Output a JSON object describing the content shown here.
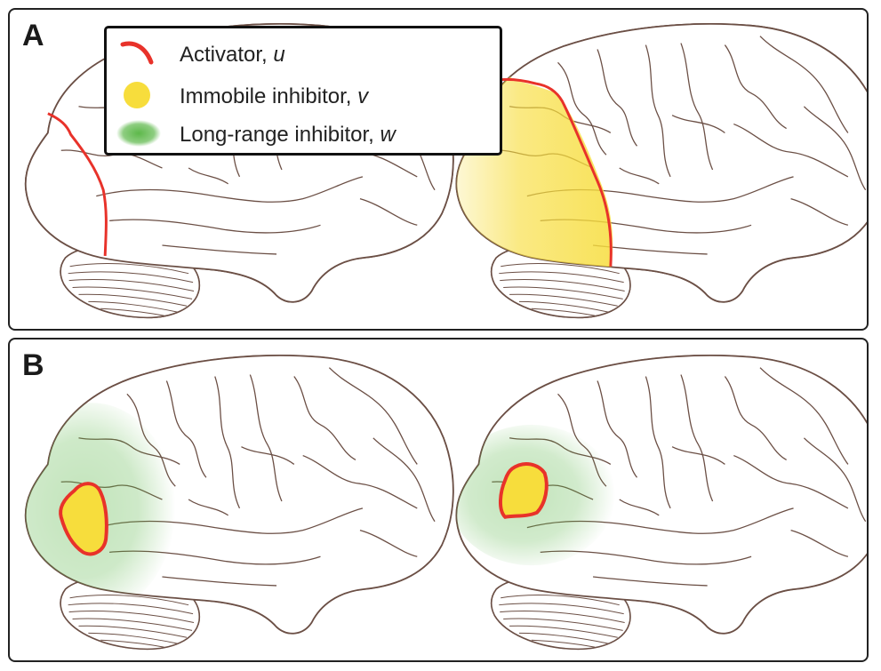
{
  "panels": [
    {
      "label": "A"
    },
    {
      "label": "B"
    }
  ],
  "legend": {
    "items": [
      {
        "text": "Activator, ",
        "symbol": "u",
        "swatch": "red-arc",
        "color": "#e8322a"
      },
      {
        "text": "Immobile inhibitor, ",
        "symbol": "v",
        "swatch": "yellow-disc",
        "color": "#f7dd3c"
      },
      {
        "text": "Long-range inhibitor, ",
        "symbol": "w",
        "swatch": "green-blob",
        "color": "#5db84a"
      }
    ]
  },
  "colors": {
    "outline": "#6b4f45",
    "activator": "#e8322a",
    "immobile_inhibitor": "#f7dd3c",
    "long_range_inhibitor": "#5db84a",
    "border": "#222222"
  }
}
